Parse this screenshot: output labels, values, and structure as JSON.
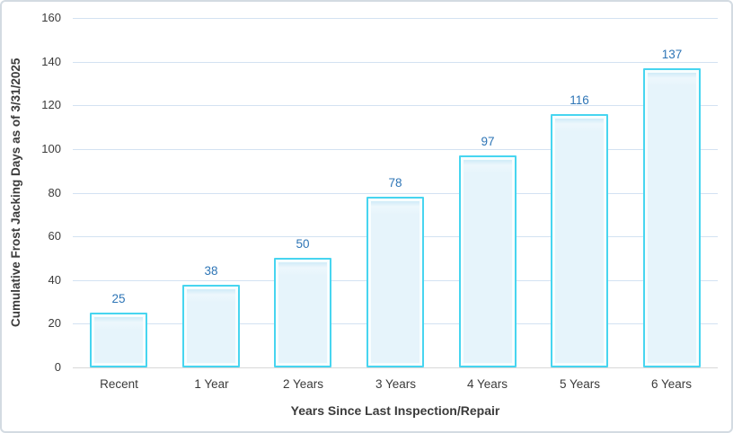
{
  "chart_data": {
    "type": "bar",
    "title": "",
    "categories": [
      "Recent",
      "1 Year",
      "2 Years",
      "3 Years",
      "4 Years",
      "5 Years",
      "6 Years"
    ],
    "values": [
      25,
      38,
      50,
      78,
      97,
      116,
      137
    ],
    "xlabel": "Years Since Last Inspection/Repair",
    "ylabel": "Cumulative Frost Jacking Days as of 3/31/2025",
    "ylim": [
      0,
      160
    ],
    "ytick_step": 20,
    "yticks": [
      0,
      20,
      40,
      60,
      80,
      100,
      120,
      140,
      160
    ],
    "grid": true,
    "legend": "none",
    "data_labels": true,
    "colors": {
      "bar_border": "#47d5f0",
      "bar_fill": "#e6f4fb",
      "bar_fill_top": "#c2e8f5",
      "bar_inner_highlight": "#f8fdfe",
      "gridline": "#d3e2f2",
      "axis_line": "#d8d8d8",
      "tick_label": "#3b3b3b",
      "data_label": "#2e75b6",
      "axis_title": "#3b3b3b",
      "frame_border": "#d3dbe2",
      "background": "#ffffff"
    }
  }
}
